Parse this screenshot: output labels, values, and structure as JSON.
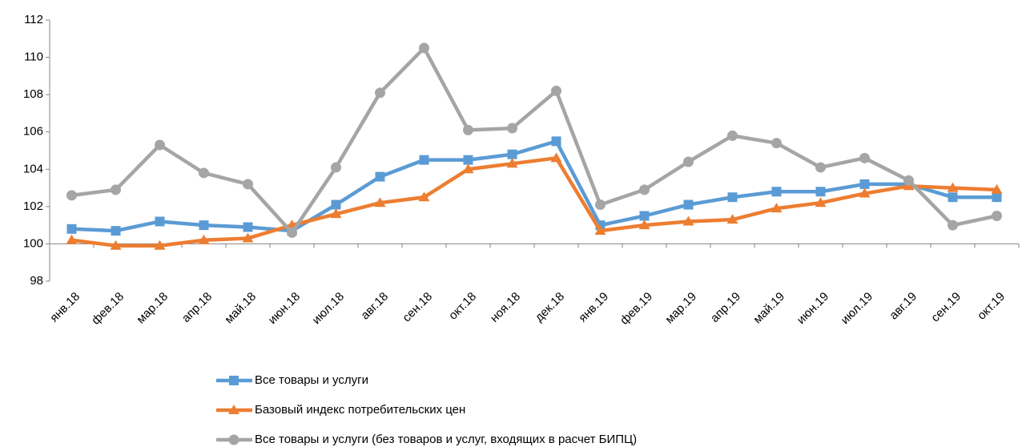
{
  "chart_data": {
    "type": "line",
    "categories": [
      "янв.18",
      "фев.18",
      "мар.18",
      "апр.18",
      "май.18",
      "июн.18",
      "июл.18",
      "авг.18",
      "сен.18",
      "окт.18",
      "ноя.18",
      "дек.18",
      "янв.19",
      "фев.19",
      "мар.19",
      "апр.19",
      "май.19",
      "июн.19",
      "июл.19",
      "авг.19",
      "сен.19",
      "окт.19"
    ],
    "series": [
      {
        "name": "Все товары и услуги",
        "color": "#5b9bd5",
        "marker": "square",
        "values": [
          100.8,
          100.7,
          101.2,
          101.0,
          100.9,
          100.7,
          102.1,
          103.6,
          104.5,
          104.5,
          104.8,
          105.5,
          101.0,
          101.5,
          102.1,
          102.5,
          102.8,
          102.8,
          103.2,
          103.2,
          102.5,
          102.5
        ]
      },
      {
        "name": "Базовый индекс потребительских цен",
        "color": "#ed7d31",
        "marker": "triangle",
        "values": [
          100.2,
          99.9,
          99.9,
          100.2,
          100.3,
          101.0,
          101.6,
          102.2,
          102.5,
          104.0,
          104.3,
          104.6,
          100.7,
          101.0,
          101.2,
          101.3,
          101.9,
          102.2,
          102.7,
          103.1,
          103.0,
          102.9
        ]
      },
      {
        "name": "Все товары и услуги (без товаров и услуг, входящих в расчет БИПЦ)",
        "color": "#a5a5a5",
        "marker": "circle",
        "values": [
          102.6,
          102.9,
          105.3,
          103.8,
          103.2,
          100.6,
          104.1,
          108.1,
          110.5,
          106.1,
          106.2,
          108.2,
          102.1,
          102.9,
          104.4,
          105.8,
          105.4,
          104.1,
          104.6,
          103.4,
          101.0,
          101.5
        ]
      }
    ],
    "ylim": [
      98,
      112
    ],
    "yticks": [
      98,
      100,
      102,
      104,
      106,
      108,
      110,
      112
    ],
    "x_axis_at": 100,
    "legend": "bottom"
  }
}
